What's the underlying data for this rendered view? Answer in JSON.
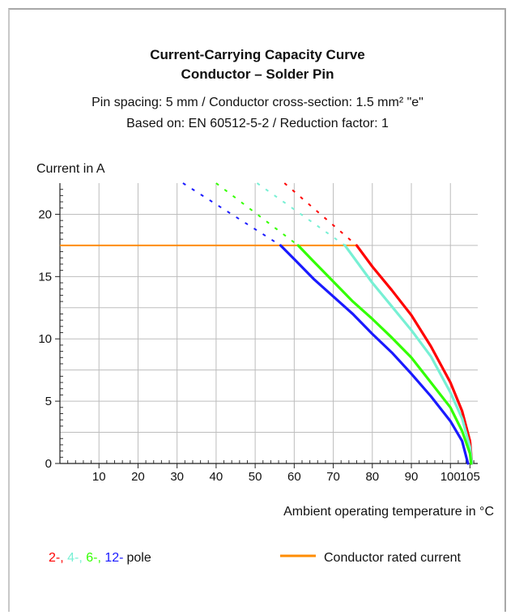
{
  "chart_data": {
    "type": "line",
    "title": "Current-Carrying Capacity Curve",
    "title_line2": "Conductor – Solder Pin",
    "subtitle_line1": "Pin spacing: 5 mm / Conductor cross-section: 1.5 mm² \"e\"",
    "subtitle_line2": "Based on: EN 60512-5-2 / Reduction factor: 1",
    "ylabel": "Current in A",
    "xlabel": "Ambient operating temperature in °C",
    "xlim": [
      0,
      107
    ],
    "ylim": [
      0,
      22.5
    ],
    "x_ticks": [
      10,
      20,
      30,
      40,
      50,
      60,
      70,
      80,
      90,
      100,
      105
    ],
    "y_ticks": [
      0,
      5,
      10,
      15,
      20
    ],
    "grid": true,
    "legend_position": "bottom",
    "rated_current": {
      "name": "Conductor rated current",
      "value": 17.5,
      "color": "#ff8c00",
      "x_range": [
        0,
        76
      ]
    },
    "series": [
      {
        "name": "2-",
        "color": "#ff0000",
        "values": [
          [
            76,
            17.5
          ],
          [
            80,
            15.8
          ],
          [
            85,
            13.9
          ],
          [
            90,
            11.9
          ],
          [
            95,
            9.4
          ],
          [
            100,
            6.5
          ],
          [
            103,
            4.2
          ],
          [
            105,
            1.8
          ],
          [
            105.5,
            0
          ]
        ],
        "extrapolated": [
          [
            57.5,
            22.5
          ],
          [
            76,
            17.5
          ]
        ]
      },
      {
        "name": "4-",
        "color": "#77f0d4",
        "values": [
          [
            73,
            17.5
          ],
          [
            80,
            14.5
          ],
          [
            85,
            12.6
          ],
          [
            90,
            10.7
          ],
          [
            95,
            8.6
          ],
          [
            100,
            5.7
          ],
          [
            103,
            3.6
          ],
          [
            105,
            1.3
          ],
          [
            105.5,
            0
          ]
        ],
        "extrapolated": [
          [
            50.5,
            22.5
          ],
          [
            73,
            17.5
          ]
        ]
      },
      {
        "name": "6-",
        "color": "#33ff00",
        "values": [
          [
            61,
            17.5
          ],
          [
            65,
            16.2
          ],
          [
            70,
            14.6
          ],
          [
            75,
            13.0
          ],
          [
            80,
            11.6
          ],
          [
            85,
            10.1
          ],
          [
            90,
            8.5
          ],
          [
            95,
            6.5
          ],
          [
            100,
            4.5
          ],
          [
            103,
            2.6
          ],
          [
            105,
            0.8
          ],
          [
            105.3,
            0
          ]
        ],
        "extrapolated": [
          [
            40,
            22.5
          ],
          [
            61,
            17.5
          ]
        ]
      },
      {
        "name": "12-",
        "color": "#1a1aff",
        "values": [
          [
            56.5,
            17.5
          ],
          [
            60,
            16.4
          ],
          [
            65,
            14.8
          ],
          [
            70,
            13.4
          ],
          [
            75,
            12.0
          ],
          [
            80,
            10.4
          ],
          [
            85,
            8.9
          ],
          [
            90,
            7.2
          ],
          [
            95,
            5.4
          ],
          [
            100,
            3.4
          ],
          [
            103,
            1.8
          ],
          [
            104.5,
            0
          ]
        ],
        "extrapolated": [
          [
            31.5,
            22.5
          ],
          [
            56.5,
            17.5
          ]
        ]
      }
    ],
    "legend": {
      "pole_suffix": "pole",
      "rated_label": "Conductor rated current"
    }
  }
}
